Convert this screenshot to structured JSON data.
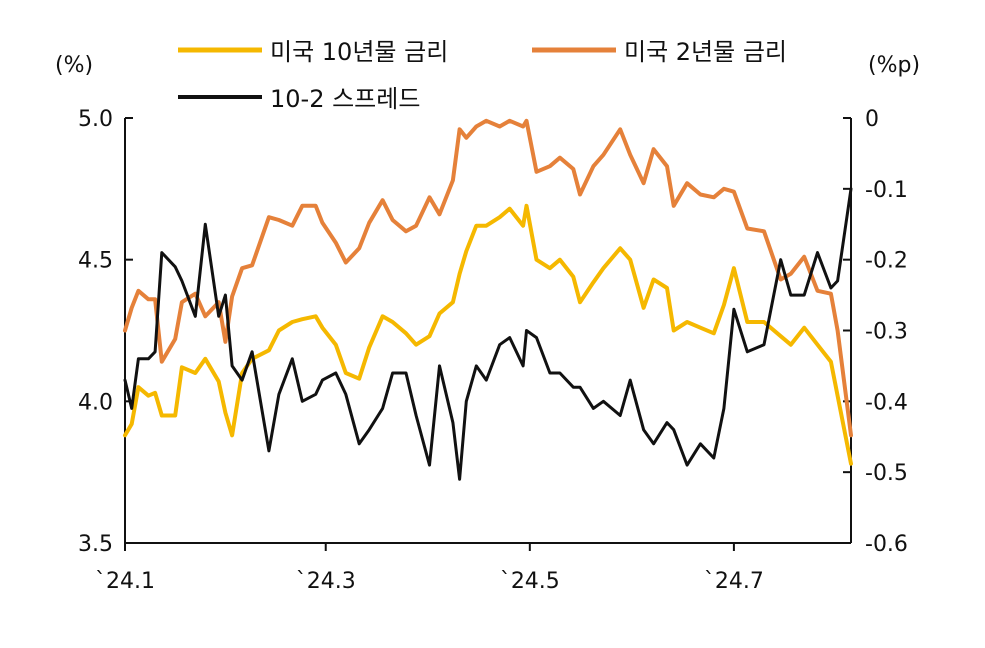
{
  "chart_data": {
    "type": "line",
    "left_axis_unit": "(%)",
    "right_axis_unit": "(%p)",
    "x_ticks": [
      {
        "label": "`24.1",
        "date": "2024-01-01"
      },
      {
        "label": "`24.3",
        "date": "2024-03-01"
      },
      {
        "label": "`24.5",
        "date": "2024-05-01"
      },
      {
        "label": "`24.7",
        "date": "2024-07-01"
      }
    ],
    "x_range": [
      "2024-01-01",
      "2024-08-05"
    ],
    "y_left": {
      "range": [
        3.5,
        5.0
      ],
      "ticks": [
        3.5,
        4.0,
        4.5,
        5.0
      ],
      "tick_labels": [
        "3.5",
        "4.0",
        "4.5",
        "5.0"
      ]
    },
    "y_right": {
      "range": [
        -0.6,
        0
      ],
      "ticks": [
        -0.6,
        -0.5,
        -0.4,
        -0.3,
        -0.2,
        -0.1,
        0
      ],
      "tick_labels": [
        "-0.6",
        "-0.5",
        "-0.4",
        "-0.3",
        "-0.2",
        "-0.1",
        "0"
      ]
    },
    "grid": false,
    "legend_position": "top",
    "series": [
      {
        "name": "미국 10년물 금리",
        "axis": "left",
        "color": "#F5B800",
        "points": [
          [
            "2024-01-01",
            3.88
          ],
          [
            "2024-01-03",
            3.92
          ],
          [
            "2024-01-05",
            4.05
          ],
          [
            "2024-01-08",
            4.02
          ],
          [
            "2024-01-10",
            4.03
          ],
          [
            "2024-01-12",
            3.95
          ],
          [
            "2024-01-16",
            3.95
          ],
          [
            "2024-01-18",
            4.12
          ],
          [
            "2024-01-22",
            4.1
          ],
          [
            "2024-01-25",
            4.15
          ],
          [
            "2024-01-29",
            4.07
          ],
          [
            "2024-01-31",
            3.96
          ],
          [
            "2024-02-02",
            3.88
          ],
          [
            "2024-02-05",
            4.1
          ],
          [
            "2024-02-08",
            4.15
          ],
          [
            "2024-02-13",
            4.18
          ],
          [
            "2024-02-16",
            4.25
          ],
          [
            "2024-02-20",
            4.28
          ],
          [
            "2024-02-23",
            4.29
          ],
          [
            "2024-02-27",
            4.3
          ],
          [
            "2024-02-29",
            4.26
          ],
          [
            "2024-03-04",
            4.2
          ],
          [
            "2024-03-07",
            4.1
          ],
          [
            "2024-03-11",
            4.08
          ],
          [
            "2024-03-14",
            4.19
          ],
          [
            "2024-03-18",
            4.3
          ],
          [
            "2024-03-21",
            4.28
          ],
          [
            "2024-03-25",
            4.24
          ],
          [
            "2024-03-28",
            4.2
          ],
          [
            "2024-04-01",
            4.23
          ],
          [
            "2024-04-04",
            4.31
          ],
          [
            "2024-04-08",
            4.35
          ],
          [
            "2024-04-10",
            4.45
          ],
          [
            "2024-04-12",
            4.53
          ],
          [
            "2024-04-15",
            4.62
          ],
          [
            "2024-04-18",
            4.62
          ],
          [
            "2024-04-22",
            4.65
          ],
          [
            "2024-04-25",
            4.68
          ],
          [
            "2024-04-29",
            4.62
          ],
          [
            "2024-04-30",
            4.69
          ],
          [
            "2024-05-03",
            4.5
          ],
          [
            "2024-05-07",
            4.47
          ],
          [
            "2024-05-10",
            4.5
          ],
          [
            "2024-05-14",
            4.44
          ],
          [
            "2024-05-16",
            4.35
          ],
          [
            "2024-05-20",
            4.42
          ],
          [
            "2024-05-23",
            4.47
          ],
          [
            "2024-05-28",
            4.54
          ],
          [
            "2024-05-31",
            4.5
          ],
          [
            "2024-06-04",
            4.33
          ],
          [
            "2024-06-07",
            4.43
          ],
          [
            "2024-06-11",
            4.4
          ],
          [
            "2024-06-13",
            4.25
          ],
          [
            "2024-06-17",
            4.28
          ],
          [
            "2024-06-21",
            4.26
          ],
          [
            "2024-06-25",
            4.24
          ],
          [
            "2024-06-28",
            4.34
          ],
          [
            "2024-07-01",
            4.47
          ],
          [
            "2024-07-05",
            4.28
          ],
          [
            "2024-07-10",
            4.28
          ],
          [
            "2024-07-15",
            4.23
          ],
          [
            "2024-07-18",
            4.2
          ],
          [
            "2024-07-22",
            4.26
          ],
          [
            "2024-07-26",
            4.2
          ],
          [
            "2024-07-30",
            4.14
          ],
          [
            "2024-08-01",
            4.02
          ],
          [
            "2024-08-05",
            3.78
          ]
        ]
      },
      {
        "name": "미국 2년물 금리",
        "axis": "left",
        "color": "#E5813A",
        "points": [
          [
            "2024-01-01",
            4.25
          ],
          [
            "2024-01-03",
            4.33
          ],
          [
            "2024-01-05",
            4.39
          ],
          [
            "2024-01-08",
            4.36
          ],
          [
            "2024-01-10",
            4.36
          ],
          [
            "2024-01-12",
            4.14
          ],
          [
            "2024-01-16",
            4.22
          ],
          [
            "2024-01-18",
            4.35
          ],
          [
            "2024-01-22",
            4.38
          ],
          [
            "2024-01-25",
            4.3
          ],
          [
            "2024-01-29",
            4.35
          ],
          [
            "2024-01-31",
            4.21
          ],
          [
            "2024-02-02",
            4.37
          ],
          [
            "2024-02-05",
            4.47
          ],
          [
            "2024-02-08",
            4.48
          ],
          [
            "2024-02-13",
            4.65
          ],
          [
            "2024-02-16",
            4.64
          ],
          [
            "2024-02-20",
            4.62
          ],
          [
            "2024-02-23",
            4.69
          ],
          [
            "2024-02-27",
            4.69
          ],
          [
            "2024-02-29",
            4.63
          ],
          [
            "2024-03-04",
            4.56
          ],
          [
            "2024-03-07",
            4.49
          ],
          [
            "2024-03-11",
            4.54
          ],
          [
            "2024-03-14",
            4.63
          ],
          [
            "2024-03-18",
            4.71
          ],
          [
            "2024-03-21",
            4.64
          ],
          [
            "2024-03-25",
            4.6
          ],
          [
            "2024-03-28",
            4.62
          ],
          [
            "2024-04-01",
            4.72
          ],
          [
            "2024-04-04",
            4.66
          ],
          [
            "2024-04-08",
            4.78
          ],
          [
            "2024-04-10",
            4.96
          ],
          [
            "2024-04-12",
            4.93
          ],
          [
            "2024-04-15",
            4.97
          ],
          [
            "2024-04-18",
            4.99
          ],
          [
            "2024-04-22",
            4.97
          ],
          [
            "2024-04-25",
            4.99
          ],
          [
            "2024-04-29",
            4.97
          ],
          [
            "2024-04-30",
            4.99
          ],
          [
            "2024-05-03",
            4.81
          ],
          [
            "2024-05-07",
            4.83
          ],
          [
            "2024-05-10",
            4.86
          ],
          [
            "2024-05-14",
            4.82
          ],
          [
            "2024-05-16",
            4.73
          ],
          [
            "2024-05-20",
            4.83
          ],
          [
            "2024-05-23",
            4.87
          ],
          [
            "2024-05-28",
            4.96
          ],
          [
            "2024-05-31",
            4.87
          ],
          [
            "2024-06-04",
            4.77
          ],
          [
            "2024-06-07",
            4.89
          ],
          [
            "2024-06-11",
            4.83
          ],
          [
            "2024-06-13",
            4.69
          ],
          [
            "2024-06-17",
            4.77
          ],
          [
            "2024-06-21",
            4.73
          ],
          [
            "2024-06-25",
            4.72
          ],
          [
            "2024-06-28",
            4.75
          ],
          [
            "2024-07-01",
            4.74
          ],
          [
            "2024-07-05",
            4.61
          ],
          [
            "2024-07-10",
            4.6
          ],
          [
            "2024-07-15",
            4.43
          ],
          [
            "2024-07-18",
            4.45
          ],
          [
            "2024-07-22",
            4.51
          ],
          [
            "2024-07-26",
            4.39
          ],
          [
            "2024-07-30",
            4.38
          ],
          [
            "2024-08-01",
            4.25
          ],
          [
            "2024-08-05",
            3.88
          ]
        ]
      },
      {
        "name": "10-2 스프레드",
        "axis": "right",
        "color": "#111111",
        "points": [
          [
            "2024-01-01",
            -0.37
          ],
          [
            "2024-01-03",
            -0.41
          ],
          [
            "2024-01-05",
            -0.34
          ],
          [
            "2024-01-08",
            -0.34
          ],
          [
            "2024-01-10",
            -0.33
          ],
          [
            "2024-01-12",
            -0.19
          ],
          [
            "2024-01-16",
            -0.21
          ],
          [
            "2024-01-18",
            -0.23
          ],
          [
            "2024-01-22",
            -0.28
          ],
          [
            "2024-01-25",
            -0.15
          ],
          [
            "2024-01-29",
            -0.28
          ],
          [
            "2024-01-31",
            -0.25
          ],
          [
            "2024-02-02",
            -0.35
          ],
          [
            "2024-02-05",
            -0.37
          ],
          [
            "2024-02-08",
            -0.33
          ],
          [
            "2024-02-13",
            -0.47
          ],
          [
            "2024-02-16",
            -0.39
          ],
          [
            "2024-02-20",
            -0.34
          ],
          [
            "2024-02-23",
            -0.4
          ],
          [
            "2024-02-27",
            -0.39
          ],
          [
            "2024-02-29",
            -0.37
          ],
          [
            "2024-03-04",
            -0.36
          ],
          [
            "2024-03-07",
            -0.39
          ],
          [
            "2024-03-11",
            -0.46
          ],
          [
            "2024-03-14",
            -0.44
          ],
          [
            "2024-03-18",
            -0.41
          ],
          [
            "2024-03-21",
            -0.36
          ],
          [
            "2024-03-25",
            -0.36
          ],
          [
            "2024-03-28",
            -0.42
          ],
          [
            "2024-04-01",
            -0.49
          ],
          [
            "2024-04-04",
            -0.35
          ],
          [
            "2024-04-08",
            -0.43
          ],
          [
            "2024-04-10",
            -0.51
          ],
          [
            "2024-04-12",
            -0.4
          ],
          [
            "2024-04-15",
            -0.35
          ],
          [
            "2024-04-18",
            -0.37
          ],
          [
            "2024-04-22",
            -0.32
          ],
          [
            "2024-04-25",
            -0.31
          ],
          [
            "2024-04-29",
            -0.35
          ],
          [
            "2024-04-30",
            -0.3
          ],
          [
            "2024-05-03",
            -0.31
          ],
          [
            "2024-05-07",
            -0.36
          ],
          [
            "2024-05-10",
            -0.36
          ],
          [
            "2024-05-14",
            -0.38
          ],
          [
            "2024-05-16",
            -0.38
          ],
          [
            "2024-05-20",
            -0.41
          ],
          [
            "2024-05-23",
            -0.4
          ],
          [
            "2024-05-28",
            -0.42
          ],
          [
            "2024-05-31",
            -0.37
          ],
          [
            "2024-06-04",
            -0.44
          ],
          [
            "2024-06-07",
            -0.46
          ],
          [
            "2024-06-11",
            -0.43
          ],
          [
            "2024-06-13",
            -0.44
          ],
          [
            "2024-06-17",
            -0.49
          ],
          [
            "2024-06-21",
            -0.46
          ],
          [
            "2024-06-25",
            -0.48
          ],
          [
            "2024-06-28",
            -0.41
          ],
          [
            "2024-07-01",
            -0.27
          ],
          [
            "2024-07-05",
            -0.33
          ],
          [
            "2024-07-10",
            -0.32
          ],
          [
            "2024-07-15",
            -0.2
          ],
          [
            "2024-07-18",
            -0.25
          ],
          [
            "2024-07-22",
            -0.25
          ],
          [
            "2024-07-26",
            -0.19
          ],
          [
            "2024-07-30",
            -0.24
          ],
          [
            "2024-08-01",
            -0.23
          ],
          [
            "2024-08-05",
            -0.1
          ]
        ]
      }
    ]
  }
}
